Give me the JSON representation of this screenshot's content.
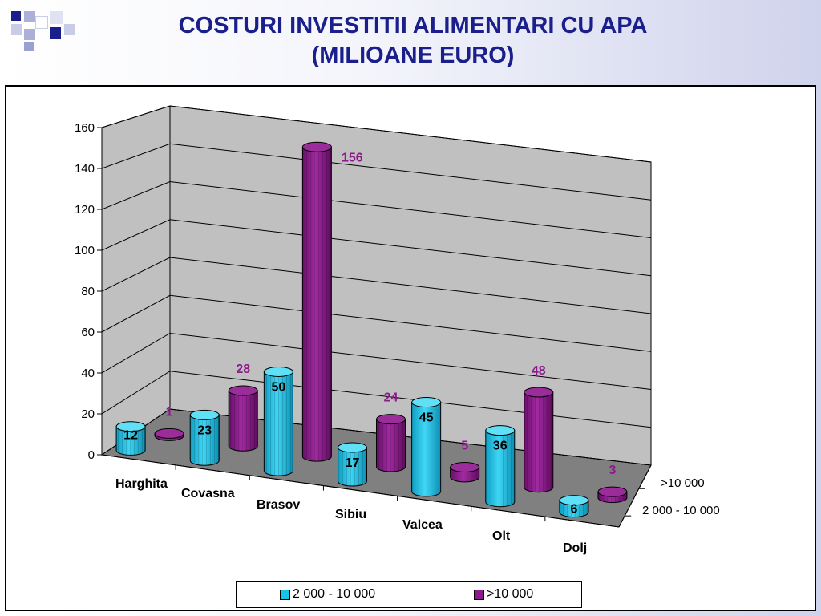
{
  "title": {
    "line1": "COSTURI INVESTITII ALIMENTARI CU APA",
    "line2": "(MILIOANE EURO)"
  },
  "colors": {
    "title": "#1a1f8c",
    "series1": "#17c3e6",
    "series2": "#8c1a8c",
    "wall": "#c0c0c0",
    "floor": "#808080"
  },
  "chart_data": {
    "type": "bar",
    "three_d": true,
    "bar_shape": "cylinder",
    "title": "COSTURI INVESTITII ALIMENTARI CU APA (MILIOANE EURO)",
    "categories": [
      "Harghita",
      "Covasna",
      "Brasov",
      "Sibiu",
      "Valcea",
      "Olt",
      "Dolj"
    ],
    "series": [
      {
        "name": "2 000 - 10 000",
        "values": [
          12,
          23,
          50,
          17,
          45,
          36,
          6
        ],
        "color": "#17c3e6"
      },
      {
        "name": ">10 000",
        "values": [
          1,
          28,
          156,
          24,
          5,
          48,
          3
        ],
        "color": "#8c1a8c"
      }
    ],
    "depth_labels": [
      ">10 000",
      "2 000 - 10 000"
    ],
    "y_ticks": [
      0,
      20,
      40,
      60,
      80,
      100,
      120,
      140,
      160
    ],
    "ylim": [
      0,
      160
    ],
    "grid": true,
    "legend": "bottom"
  }
}
